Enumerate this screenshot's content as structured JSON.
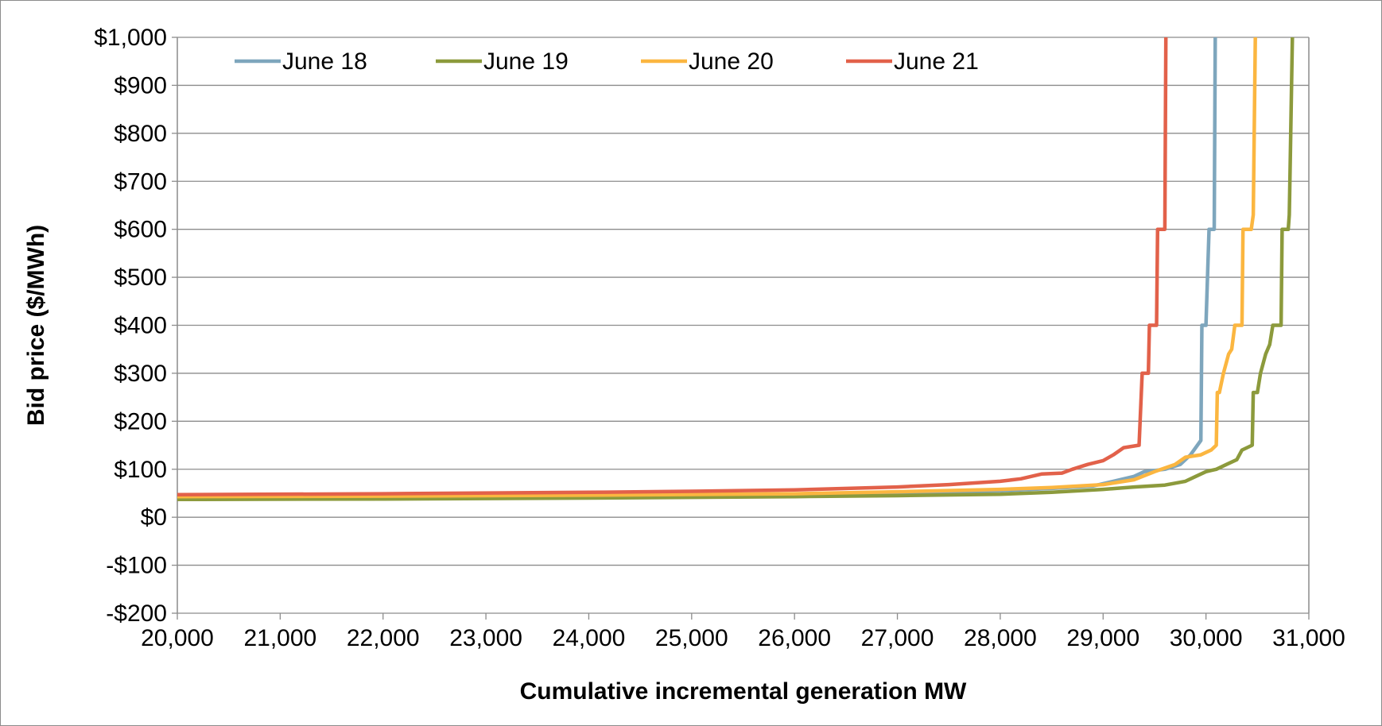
{
  "chart_data": {
    "type": "line",
    "title": "",
    "xlabel": "Cumulative incremental generation MW",
    "ylabel": "Bid price ($/MWh)",
    "xlim": [
      20000,
      31000
    ],
    "ylim": [
      -200,
      1000
    ],
    "x_ticks": [
      20000,
      21000,
      22000,
      23000,
      24000,
      25000,
      26000,
      27000,
      28000,
      29000,
      30000,
      31000
    ],
    "x_tick_labels": [
      "20,000",
      "21,000",
      "22,000",
      "23,000",
      "24,000",
      "25,000",
      "26,000",
      "27,000",
      "28,000",
      "29,000",
      "30,000",
      "31,000"
    ],
    "y_ticks": [
      1000,
      900,
      800,
      700,
      600,
      500,
      400,
      300,
      200,
      100,
      0,
      -100,
      -200
    ],
    "y_tick_labels": [
      "$1,000",
      "$900",
      "$800",
      "$700",
      "$600",
      "$500",
      "$400",
      "$300",
      "$200",
      "$100",
      "$0",
      "-$100",
      "-$200"
    ],
    "grid": "horizontal",
    "legend": "top",
    "series": [
      {
        "name": "June 18",
        "color": "#7ea6bd",
        "points": [
          [
            20000,
            40
          ],
          [
            22000,
            41
          ],
          [
            24000,
            43
          ],
          [
            26000,
            46
          ],
          [
            27000,
            50
          ],
          [
            28000,
            55
          ],
          [
            28500,
            60
          ],
          [
            28900,
            65
          ],
          [
            29100,
            75
          ],
          [
            29300,
            85
          ],
          [
            29400,
            95
          ],
          [
            29600,
            100
          ],
          [
            29750,
            110
          ],
          [
            29850,
            130
          ],
          [
            29950,
            160
          ],
          [
            29960,
            400
          ],
          [
            30000,
            400
          ],
          [
            30030,
            600
          ],
          [
            30080,
            600
          ],
          [
            30090,
            1000
          ]
        ]
      },
      {
        "name": "June 19",
        "color": "#8c9a3c",
        "points": [
          [
            20000,
            37
          ],
          [
            22000,
            38
          ],
          [
            24000,
            40
          ],
          [
            26000,
            43
          ],
          [
            27000,
            45
          ],
          [
            28000,
            48
          ],
          [
            28500,
            52
          ],
          [
            29000,
            58
          ],
          [
            29300,
            63
          ],
          [
            29600,
            67
          ],
          [
            29800,
            75
          ],
          [
            29900,
            85
          ],
          [
            30000,
            95
          ],
          [
            30100,
            100
          ],
          [
            30200,
            110
          ],
          [
            30300,
            120
          ],
          [
            30350,
            140
          ],
          [
            30450,
            150
          ],
          [
            30460,
            260
          ],
          [
            30500,
            260
          ],
          [
            30530,
            300
          ],
          [
            30580,
            340
          ],
          [
            30620,
            360
          ],
          [
            30650,
            400
          ],
          [
            30730,
            400
          ],
          [
            30740,
            600
          ],
          [
            30800,
            600
          ],
          [
            30810,
            630
          ],
          [
            30820,
            750
          ],
          [
            30840,
            1000
          ]
        ]
      },
      {
        "name": "June 20",
        "color": "#fbb640",
        "points": [
          [
            20000,
            43
          ],
          [
            22000,
            44
          ],
          [
            24000,
            46
          ],
          [
            26000,
            49
          ],
          [
            27000,
            53
          ],
          [
            28000,
            58
          ],
          [
            28500,
            62
          ],
          [
            29000,
            68
          ],
          [
            29300,
            78
          ],
          [
            29500,
            95
          ],
          [
            29700,
            110
          ],
          [
            29800,
            125
          ],
          [
            29950,
            130
          ],
          [
            30050,
            140
          ],
          [
            30100,
            150
          ],
          [
            30110,
            260
          ],
          [
            30130,
            260
          ],
          [
            30170,
            300
          ],
          [
            30220,
            340
          ],
          [
            30250,
            350
          ],
          [
            30280,
            400
          ],
          [
            30350,
            400
          ],
          [
            30360,
            600
          ],
          [
            30440,
            600
          ],
          [
            30460,
            630
          ],
          [
            30480,
            1000
          ]
        ]
      },
      {
        "name": "June 21",
        "color": "#e2614a",
        "points": [
          [
            20000,
            47
          ],
          [
            22000,
            49
          ],
          [
            24000,
            52
          ],
          [
            25000,
            54
          ],
          [
            26000,
            57
          ],
          [
            27000,
            63
          ],
          [
            27500,
            68
          ],
          [
            28000,
            75
          ],
          [
            28200,
            80
          ],
          [
            28400,
            90
          ],
          [
            28600,
            92
          ],
          [
            28700,
            100
          ],
          [
            28850,
            110
          ],
          [
            29000,
            118
          ],
          [
            29100,
            130
          ],
          [
            29200,
            145
          ],
          [
            29350,
            150
          ],
          [
            29380,
            300
          ],
          [
            29440,
            300
          ],
          [
            29450,
            400
          ],
          [
            29520,
            400
          ],
          [
            29530,
            600
          ],
          [
            29600,
            600
          ],
          [
            29610,
            1000
          ]
        ]
      }
    ]
  }
}
